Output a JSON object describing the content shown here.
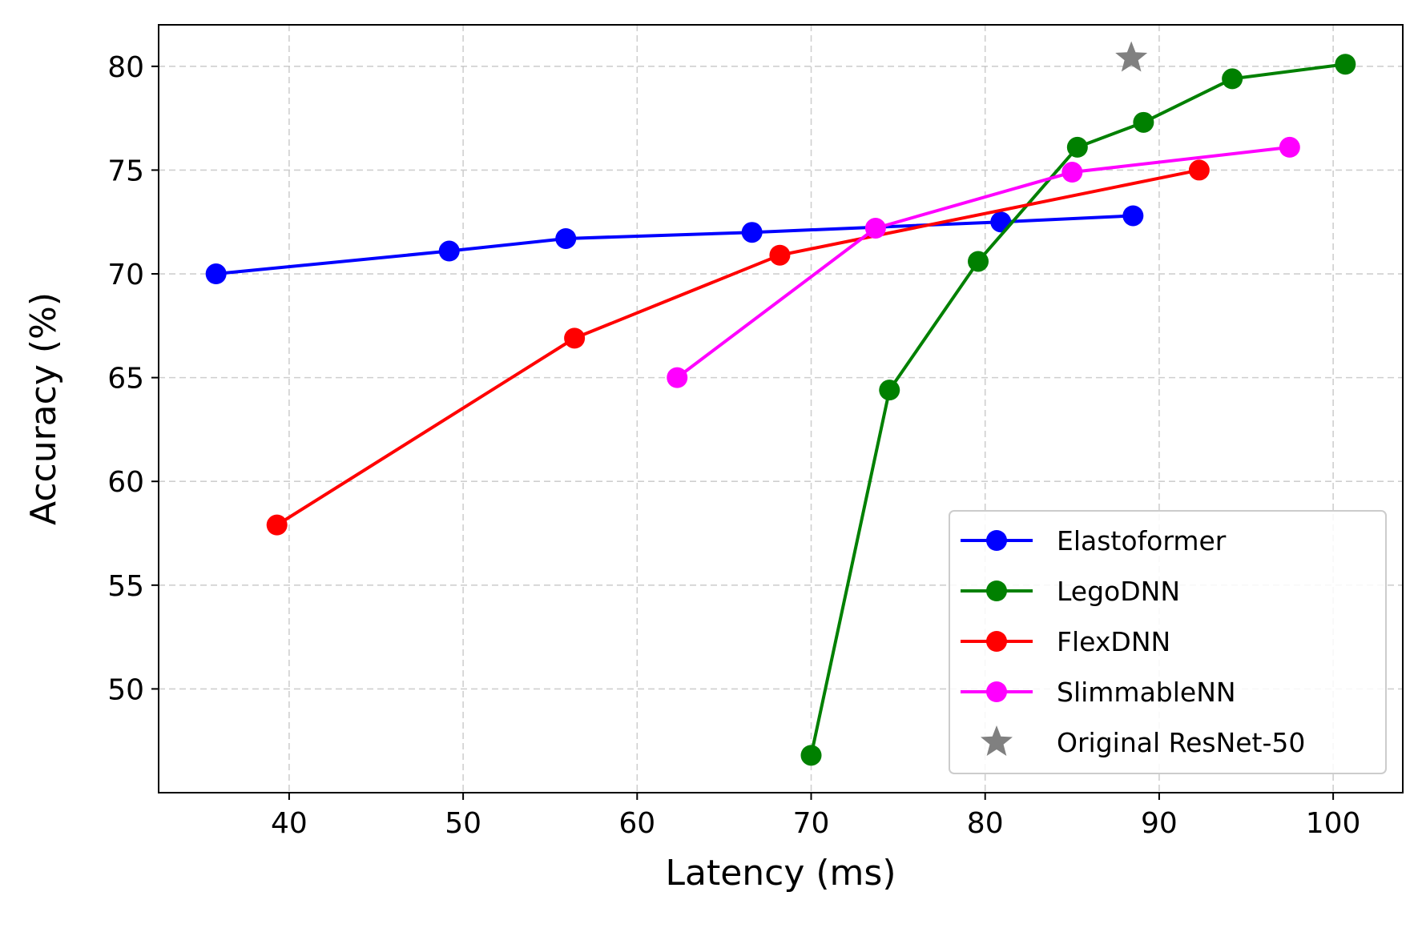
{
  "chart_data": {
    "type": "line",
    "title": "",
    "xlabel": "Latency (ms)",
    "ylabel": "Accuracy (%)",
    "xlim": [
      32.5,
      104
    ],
    "ylim": [
      45,
      82
    ],
    "xticks": [
      40,
      50,
      60,
      70,
      80,
      90,
      100
    ],
    "yticks": [
      50,
      55,
      60,
      65,
      70,
      75,
      80
    ],
    "grid": true,
    "legend_position": "bottom-right",
    "series": [
      {
        "name": "Elastoformer",
        "color": "#0000ff",
        "marker": "circle",
        "x": [
          35.8,
          49.2,
          55.9,
          66.6,
          80.9,
          88.5
        ],
        "y": [
          70.0,
          71.1,
          71.7,
          72.0,
          72.5,
          72.8
        ]
      },
      {
        "name": "LegoDNN",
        "color": "#008000",
        "marker": "circle",
        "x": [
          70.0,
          74.5,
          79.6,
          85.3,
          89.1,
          94.2,
          100.7
        ],
        "y": [
          46.8,
          64.4,
          70.6,
          76.1,
          77.3,
          79.4,
          80.1
        ]
      },
      {
        "name": "FlexDNN",
        "color": "#ff0000",
        "marker": "circle",
        "x": [
          39.3,
          56.4,
          68.2,
          92.3
        ],
        "y": [
          57.9,
          66.9,
          70.9,
          75.0
        ]
      },
      {
        "name": "SlimmableNN",
        "color": "#ff00ff",
        "marker": "circle",
        "x": [
          62.3,
          73.7,
          85.0,
          97.5
        ],
        "y": [
          65.0,
          72.2,
          74.9,
          76.1
        ]
      },
      {
        "name": "Original ResNet-50",
        "color": "#808080",
        "marker": "star",
        "x": [
          88.4
        ],
        "y": [
          80.4
        ]
      }
    ]
  }
}
